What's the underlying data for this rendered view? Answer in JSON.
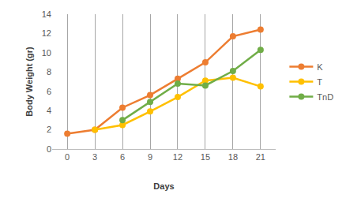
{
  "chart_data": {
    "type": "line",
    "x_label": "Days",
    "y_label": "Body Weight (gr)",
    "categories": [
      "0",
      "3",
      "6",
      "9",
      "12",
      "15",
      "18",
      "21"
    ],
    "series": [
      {
        "name": "K",
        "color": "#ED7D31",
        "marker": "circle",
        "values": [
          1.6,
          2.0,
          4.3,
          5.6,
          7.3,
          9.0,
          11.7,
          12.4
        ]
      },
      {
        "name": "T",
        "color": "#FFC000",
        "marker": "circle",
        "values": [
          null,
          2.0,
          2.5,
          3.9,
          5.4,
          7.1,
          7.4,
          6.5
        ]
      },
      {
        "name": "TnD",
        "color": "#70AD47",
        "marker": "circle",
        "values": [
          null,
          null,
          3.0,
          4.9,
          6.8,
          6.6,
          8.1,
          10.3
        ]
      }
    ],
    "ylim": [
      0,
      14
    ],
    "yticks": [
      0,
      2,
      4,
      6,
      8,
      10,
      12,
      14
    ],
    "grid": true,
    "legend": "right"
  }
}
